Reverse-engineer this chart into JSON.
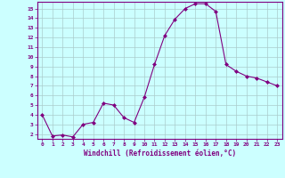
{
  "x": [
    0,
    1,
    2,
    3,
    4,
    5,
    6,
    7,
    8,
    9,
    10,
    11,
    12,
    13,
    14,
    15,
    16,
    17,
    18,
    19,
    20,
    21,
    22,
    23
  ],
  "y": [
    4.0,
    1.8,
    1.9,
    1.7,
    3.0,
    3.2,
    5.2,
    5.0,
    3.7,
    3.2,
    5.8,
    9.2,
    12.2,
    13.9,
    15.0,
    15.5,
    15.5,
    14.7,
    9.2,
    8.5,
    8.0,
    7.8,
    7.4,
    7.0
  ],
  "line_color": "#800080",
  "marker": "D",
  "marker_size": 2,
  "bg_color": "#ccffff",
  "grid_color": "#aacccc",
  "xlabel": "Windchill (Refroidissement éolien,°C)",
  "xlabel_color": "#800080",
  "tick_color": "#800080",
  "ylim": [
    1.5,
    15.7
  ],
  "xlim": [
    -0.5,
    23.5
  ],
  "yticks": [
    2,
    3,
    4,
    5,
    6,
    7,
    8,
    9,
    10,
    11,
    12,
    13,
    14,
    15
  ],
  "xticks": [
    0,
    1,
    2,
    3,
    4,
    5,
    6,
    7,
    8,
    9,
    10,
    11,
    12,
    13,
    14,
    15,
    16,
    17,
    18,
    19,
    20,
    21,
    22,
    23
  ],
  "spine_color": "#800080"
}
